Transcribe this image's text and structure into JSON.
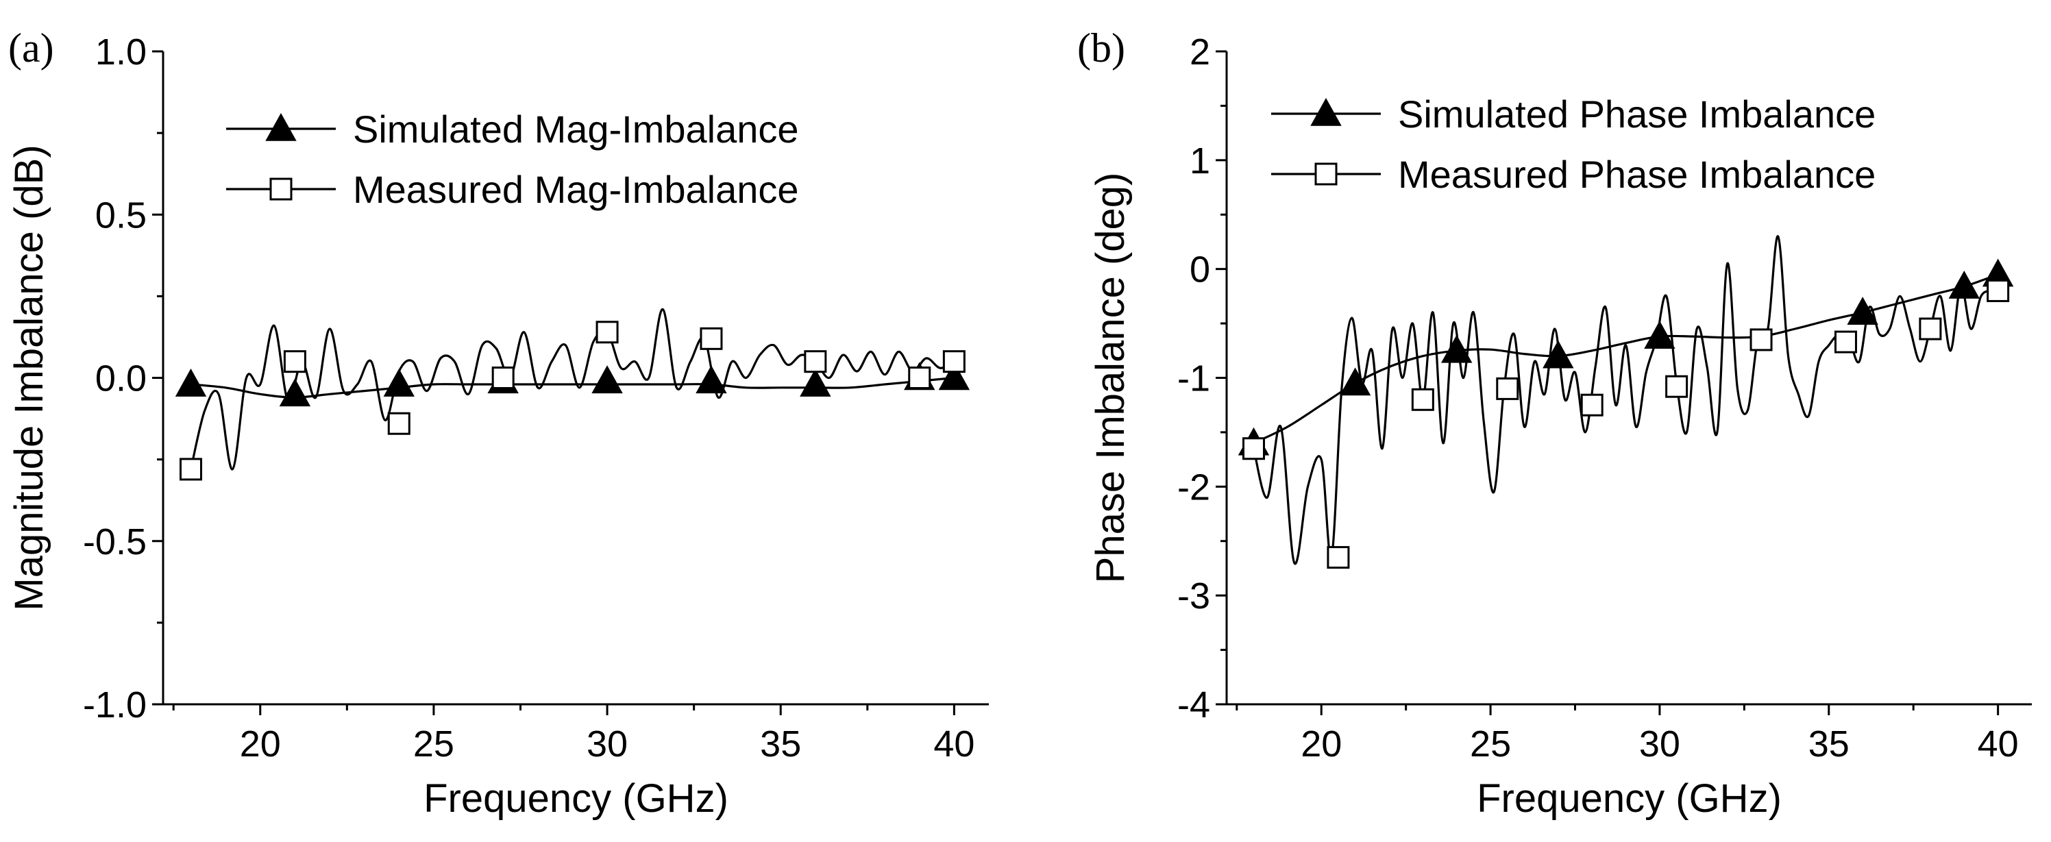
{
  "chart_data": [
    {
      "type": "line",
      "panel_label": "(a)",
      "xlabel": "Frequency (GHz)",
      "ylabel": "Magnitude Imbalance (dB)",
      "xlim": [
        17.2,
        41.0
      ],
      "ylim": [
        -1.0,
        1.0
      ],
      "xticks": [
        20,
        25,
        30,
        35,
        40
      ],
      "xtick_labels": [
        "20",
        "25",
        "30",
        "35",
        "40"
      ],
      "yticks": [
        -1.0,
        -0.5,
        0.0,
        0.5,
        1.0
      ],
      "ytick_labels": [
        "-1.0",
        "-0.5",
        "0.0",
        "0.5",
        "1.0"
      ],
      "legend_position": "top-right",
      "series": [
        {
          "name": "Simulated Mag-Imbalance",
          "marker": "filled-triangle",
          "curve_x": [
            18,
            19,
            20,
            21,
            22,
            23,
            24,
            25,
            26,
            27,
            28,
            29,
            30,
            31,
            32,
            33,
            34,
            35,
            36,
            37,
            38,
            39,
            40
          ],
          "curve_y": [
            -0.02,
            -0.03,
            -0.05,
            -0.06,
            -0.05,
            -0.04,
            -0.03,
            -0.02,
            -0.02,
            -0.02,
            -0.02,
            -0.02,
            -0.02,
            -0.02,
            -0.02,
            -0.02,
            -0.03,
            -0.03,
            -0.03,
            -0.03,
            -0.02,
            -0.01,
            0.0
          ],
          "marker_x": [
            18,
            21,
            24,
            27,
            30,
            33,
            36,
            39,
            40
          ],
          "marker_y": [
            -0.02,
            -0.05,
            -0.02,
            -0.01,
            -0.01,
            -0.01,
            -0.02,
            0.0,
            0.0
          ]
        },
        {
          "name": "Measured Mag-Imbalance",
          "marker": "open-square",
          "curve_x": [
            18,
            18.4,
            18.8,
            19.2,
            19.6,
            20.0,
            20.4,
            20.8,
            21.2,
            21.6,
            22.0,
            22.4,
            22.8,
            23.2,
            23.6,
            24.0,
            24.4,
            24.8,
            25.2,
            25.6,
            26.0,
            26.4,
            26.8,
            27.2,
            27.6,
            28.0,
            28.4,
            28.8,
            29.2,
            29.6,
            30.0,
            30.4,
            30.8,
            31.2,
            31.6,
            32.0,
            32.4,
            32.8,
            33.2,
            33.6,
            34.0,
            34.4,
            34.8,
            35.2,
            35.6,
            36.0,
            36.4,
            36.8,
            37.2,
            37.6,
            38.0,
            38.4,
            38.8,
            39.2,
            39.6,
            40.0
          ],
          "curve_y": [
            -0.28,
            -0.1,
            -0.05,
            -0.28,
            0.0,
            -0.02,
            0.16,
            -0.07,
            0.05,
            -0.06,
            0.15,
            -0.04,
            -0.02,
            0.05,
            -0.13,
            0.02,
            0.05,
            -0.04,
            0.06,
            0.05,
            -0.05,
            0.1,
            0.09,
            0.0,
            0.14,
            -0.03,
            0.05,
            0.1,
            -0.03,
            0.11,
            0.14,
            0.03,
            0.05,
            0.0,
            0.21,
            -0.03,
            0.05,
            0.12,
            -0.06,
            0.05,
            0.0,
            0.07,
            0.1,
            0.04,
            0.07,
            0.05,
            0.0,
            0.07,
            0.02,
            0.08,
            0.01,
            0.08,
            0.02,
            0.06,
            0.03,
            0.05
          ],
          "marker_x": [
            18,
            21,
            24,
            27,
            30,
            33,
            36,
            39,
            40
          ],
          "marker_y": [
            -0.28,
            0.05,
            -0.14,
            0.0,
            0.14,
            0.12,
            0.05,
            0.0,
            0.05
          ]
        }
      ]
    },
    {
      "type": "line",
      "panel_label": "(b)",
      "xlabel": "Frequency (GHz)",
      "ylabel": "Phase Imbalance  (deg)",
      "xlim": [
        17.2,
        41.0
      ],
      "ylim": [
        -4,
        2
      ],
      "xticks": [
        20,
        25,
        30,
        35,
        40
      ],
      "xtick_labels": [
        "20",
        "25",
        "30",
        "35",
        "40"
      ],
      "yticks": [
        -4,
        -3,
        -2,
        -1,
        0,
        1,
        2
      ],
      "ytick_labels": [
        "-4",
        "-3",
        "-2",
        "-1",
        "0",
        "1",
        "2"
      ],
      "legend_position": "top-right",
      "series": [
        {
          "name": "Simulated Phase Imbalance",
          "marker": "filled-triangle",
          "curve_x": [
            18,
            19,
            20,
            21,
            22,
            23,
            24,
            25,
            26,
            27,
            28,
            29,
            30,
            31,
            32,
            33,
            34,
            35,
            36,
            37,
            38,
            39,
            40
          ],
          "curve_y": [
            -1.6,
            -1.45,
            -1.25,
            -1.05,
            -0.9,
            -0.8,
            -0.75,
            -0.74,
            -0.78,
            -0.8,
            -0.75,
            -0.68,
            -0.62,
            -0.62,
            -0.63,
            -0.62,
            -0.55,
            -0.47,
            -0.4,
            -0.32,
            -0.24,
            -0.16,
            -0.05
          ],
          "marker_x": [
            18,
            21,
            24,
            27,
            30,
            36,
            39,
            40
          ],
          "marker_y": [
            -1.6,
            -1.05,
            -0.75,
            -0.8,
            -0.62,
            -0.4,
            -0.16,
            -0.05
          ]
        },
        {
          "name": "Measured Phase Imbalance",
          "marker": "open-square",
          "curve_x": [
            18,
            18.4,
            18.8,
            19.2,
            19.6,
            20.0,
            20.3,
            20.6,
            20.9,
            21.2,
            21.5,
            21.8,
            22.1,
            22.4,
            22.7,
            23.0,
            23.3,
            23.6,
            23.9,
            24.2,
            24.5,
            24.8,
            25.1,
            25.4,
            25.7,
            26.0,
            26.3,
            26.6,
            26.9,
            27.2,
            27.5,
            27.8,
            28.1,
            28.4,
            28.7,
            29.0,
            29.3,
            29.6,
            29.9,
            30.2,
            30.5,
            30.8,
            31.1,
            31.4,
            31.7,
            32.0,
            32.3,
            32.6,
            32.9,
            33.2,
            33.5,
            33.8,
            34.1,
            34.4,
            34.7,
            35.0,
            35.3,
            35.6,
            35.9,
            36.2,
            36.5,
            36.8,
            37.1,
            37.4,
            37.7,
            38.0,
            38.3,
            38.6,
            38.9,
            39.2,
            39.5,
            39.8,
            40.0
          ],
          "curve_y": [
            -1.65,
            -2.1,
            -1.45,
            -2.7,
            -2.0,
            -1.75,
            -2.65,
            -1.1,
            -0.45,
            -1.05,
            -0.75,
            -1.65,
            -0.55,
            -1.0,
            -0.5,
            -1.2,
            -0.4,
            -1.6,
            -0.5,
            -1.0,
            -0.4,
            -1.4,
            -2.05,
            -1.1,
            -0.6,
            -1.45,
            -0.85,
            -1.15,
            -0.55,
            -1.2,
            -0.95,
            -1.5,
            -0.9,
            -0.35,
            -1.25,
            -0.7,
            -1.45,
            -0.95,
            -0.65,
            -0.25,
            -1.05,
            -1.5,
            -0.55,
            -0.9,
            -1.5,
            0.05,
            -1.1,
            -1.3,
            -0.65,
            -0.55,
            0.3,
            -0.8,
            -1.15,
            -1.35,
            -0.85,
            -0.7,
            -0.6,
            -0.65,
            -0.85,
            -0.35,
            -0.6,
            -0.55,
            -0.25,
            -0.55,
            -0.85,
            -0.55,
            -0.25,
            -0.75,
            -0.15,
            -0.55,
            -0.25,
            -0.2,
            -0.2
          ],
          "marker_x": [
            18,
            20.5,
            23,
            25.5,
            28,
            30.5,
            33,
            35.5,
            38,
            40
          ],
          "marker_y": [
            -1.65,
            -2.65,
            -1.2,
            -1.1,
            -1.25,
            -1.08,
            -0.65,
            -0.67,
            -0.55,
            -0.2
          ]
        }
      ]
    }
  ]
}
